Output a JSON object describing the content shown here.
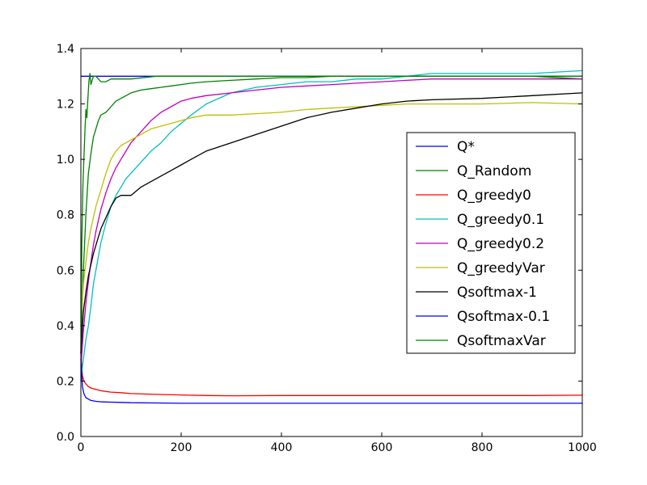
{
  "chart_data": {
    "type": "line",
    "xlim": [
      0,
      1000
    ],
    "ylim": [
      0.0,
      1.4
    ],
    "xticks": [
      0,
      200,
      400,
      600,
      800,
      1000
    ],
    "xtick_labels": [
      "0",
      "200",
      "400",
      "600",
      "800",
      "1000"
    ],
    "yticks": [
      0.0,
      0.2,
      0.4,
      0.6,
      0.8,
      1.0,
      1.2,
      1.4
    ],
    "ytick_labels": [
      "0.0",
      "0.2",
      "0.4",
      "0.6",
      "0.8",
      "1.0",
      "1.2",
      "1.4"
    ],
    "grid": false,
    "legend_position": "right",
    "series": [
      {
        "name": "Q*",
        "color": "#0000ff",
        "x": [
          0,
          1000
        ],
        "y": [
          1.3,
          1.3
        ]
      },
      {
        "name": "Q_Random",
        "color": "#008000",
        "x": [
          0,
          5,
          10,
          15,
          20,
          25,
          30,
          35,
          40,
          50,
          60,
          70,
          80,
          90,
          100,
          120,
          140,
          160,
          180,
          200,
          220,
          250,
          300,
          350,
          400,
          450,
          500,
          550,
          600,
          650,
          700,
          800,
          900,
          1000
        ],
        "y": [
          0.3,
          0.6,
          0.8,
          0.95,
          1.02,
          1.08,
          1.11,
          1.14,
          1.16,
          1.17,
          1.19,
          1.21,
          1.22,
          1.23,
          1.24,
          1.25,
          1.255,
          1.26,
          1.265,
          1.27,
          1.275,
          1.28,
          1.285,
          1.29,
          1.295,
          1.295,
          1.3,
          1.3,
          1.3,
          1.3,
          1.3,
          1.3,
          1.3,
          1.29
        ]
      },
      {
        "name": "Q_greedy0",
        "color": "#ff0000",
        "x": [
          0,
          3,
          6,
          10,
          15,
          20,
          30,
          40,
          60,
          80,
          100,
          150,
          200,
          250,
          300,
          400,
          500,
          600,
          700,
          800,
          900,
          1000
        ],
        "y": [
          0.3,
          0.22,
          0.2,
          0.19,
          0.18,
          0.175,
          0.17,
          0.165,
          0.16,
          0.158,
          0.155,
          0.152,
          0.15,
          0.148,
          0.147,
          0.148,
          0.148,
          0.148,
          0.148,
          0.148,
          0.148,
          0.149
        ]
      },
      {
        "name": "Q_greedy0.1",
        "color": "#00bfbf",
        "x": [
          0,
          5,
          10,
          15,
          20,
          25,
          30,
          35,
          40,
          50,
          60,
          70,
          80,
          90,
          100,
          120,
          140,
          160,
          180,
          200,
          220,
          250,
          300,
          350,
          400,
          450,
          500,
          550,
          600,
          650,
          700,
          800,
          900,
          1000
        ],
        "y": [
          0.2,
          0.28,
          0.35,
          0.4,
          0.47,
          0.55,
          0.6,
          0.65,
          0.7,
          0.77,
          0.83,
          0.87,
          0.9,
          0.93,
          0.95,
          0.99,
          1.03,
          1.06,
          1.1,
          1.13,
          1.16,
          1.2,
          1.24,
          1.26,
          1.27,
          1.28,
          1.28,
          1.29,
          1.29,
          1.3,
          1.31,
          1.31,
          1.31,
          1.32
        ]
      },
      {
        "name": "Q_greedy0.2",
        "color": "#bf00bf",
        "x": [
          0,
          5,
          10,
          15,
          20,
          25,
          30,
          35,
          40,
          50,
          60,
          70,
          80,
          90,
          100,
          120,
          140,
          160,
          180,
          200,
          220,
          250,
          300,
          350,
          400,
          450,
          500,
          550,
          600,
          650,
          700,
          800,
          900,
          1000
        ],
        "y": [
          0.25,
          0.38,
          0.48,
          0.56,
          0.63,
          0.69,
          0.74,
          0.78,
          0.82,
          0.88,
          0.93,
          0.97,
          1.0,
          1.03,
          1.06,
          1.1,
          1.14,
          1.17,
          1.19,
          1.21,
          1.22,
          1.23,
          1.24,
          1.25,
          1.26,
          1.265,
          1.27,
          1.275,
          1.28,
          1.285,
          1.29,
          1.29,
          1.29,
          1.29
        ]
      },
      {
        "name": "Q_greedyVar",
        "color": "#bfbf00",
        "x": [
          0,
          5,
          10,
          15,
          20,
          25,
          30,
          35,
          40,
          50,
          60,
          70,
          80,
          90,
          100,
          120,
          140,
          160,
          180,
          200,
          220,
          250,
          300,
          350,
          400,
          450,
          500,
          550,
          600,
          650,
          700,
          800,
          900,
          1000
        ],
        "y": [
          0.4,
          0.55,
          0.63,
          0.7,
          0.75,
          0.79,
          0.83,
          0.86,
          0.89,
          0.95,
          1.0,
          1.03,
          1.05,
          1.06,
          1.07,
          1.09,
          1.11,
          1.12,
          1.13,
          1.14,
          1.15,
          1.16,
          1.16,
          1.165,
          1.17,
          1.18,
          1.185,
          1.19,
          1.195,
          1.2,
          1.2,
          1.2,
          1.205,
          1.2
        ]
      },
      {
        "name": "Qsoftmax-1",
        "color": "#000000",
        "x": [
          0,
          5,
          10,
          15,
          20,
          25,
          30,
          35,
          40,
          50,
          60,
          70,
          80,
          90,
          100,
          120,
          140,
          160,
          180,
          200,
          220,
          250,
          300,
          350,
          400,
          450,
          500,
          550,
          600,
          650,
          700,
          800,
          900,
          1000
        ],
        "y": [
          0.3,
          0.45,
          0.52,
          0.58,
          0.62,
          0.66,
          0.69,
          0.72,
          0.75,
          0.79,
          0.83,
          0.86,
          0.87,
          0.87,
          0.87,
          0.9,
          0.92,
          0.94,
          0.96,
          0.98,
          1.0,
          1.03,
          1.06,
          1.09,
          1.12,
          1.15,
          1.17,
          1.185,
          1.2,
          1.21,
          1.215,
          1.22,
          1.23,
          1.24
        ]
      },
      {
        "name": "Qsoftmax-0.1",
        "color": "#0000ff",
        "x": [
          0,
          3,
          6,
          10,
          15,
          20,
          30,
          40,
          60,
          80,
          100,
          150,
          200,
          300,
          400,
          500,
          600,
          700,
          800,
          900,
          1000
        ],
        "y": [
          0.28,
          0.18,
          0.155,
          0.14,
          0.135,
          0.13,
          0.127,
          0.125,
          0.124,
          0.123,
          0.122,
          0.121,
          0.12,
          0.12,
          0.12,
          0.12,
          0.12,
          0.12,
          0.12,
          0.12,
          0.12
        ]
      },
      {
        "name": "QsoftmaxVar",
        "color": "#008000",
        "x": [
          0,
          2,
          4,
          6,
          8,
          10,
          12,
          14,
          16,
          18,
          20,
          25,
          30,
          35,
          40,
          50,
          60,
          80,
          100,
          150,
          200,
          250,
          300,
          400,
          500,
          600,
          700,
          800,
          900,
          1000
        ],
        "y": [
          0.3,
          0.7,
          0.9,
          1.0,
          1.1,
          1.18,
          1.15,
          1.22,
          1.28,
          1.31,
          1.27,
          1.3,
          1.3,
          1.29,
          1.28,
          1.28,
          1.29,
          1.29,
          1.29,
          1.3,
          1.3,
          1.3,
          1.3,
          1.3,
          1.3,
          1.3,
          1.3,
          1.3,
          1.3,
          1.3
        ]
      }
    ]
  }
}
